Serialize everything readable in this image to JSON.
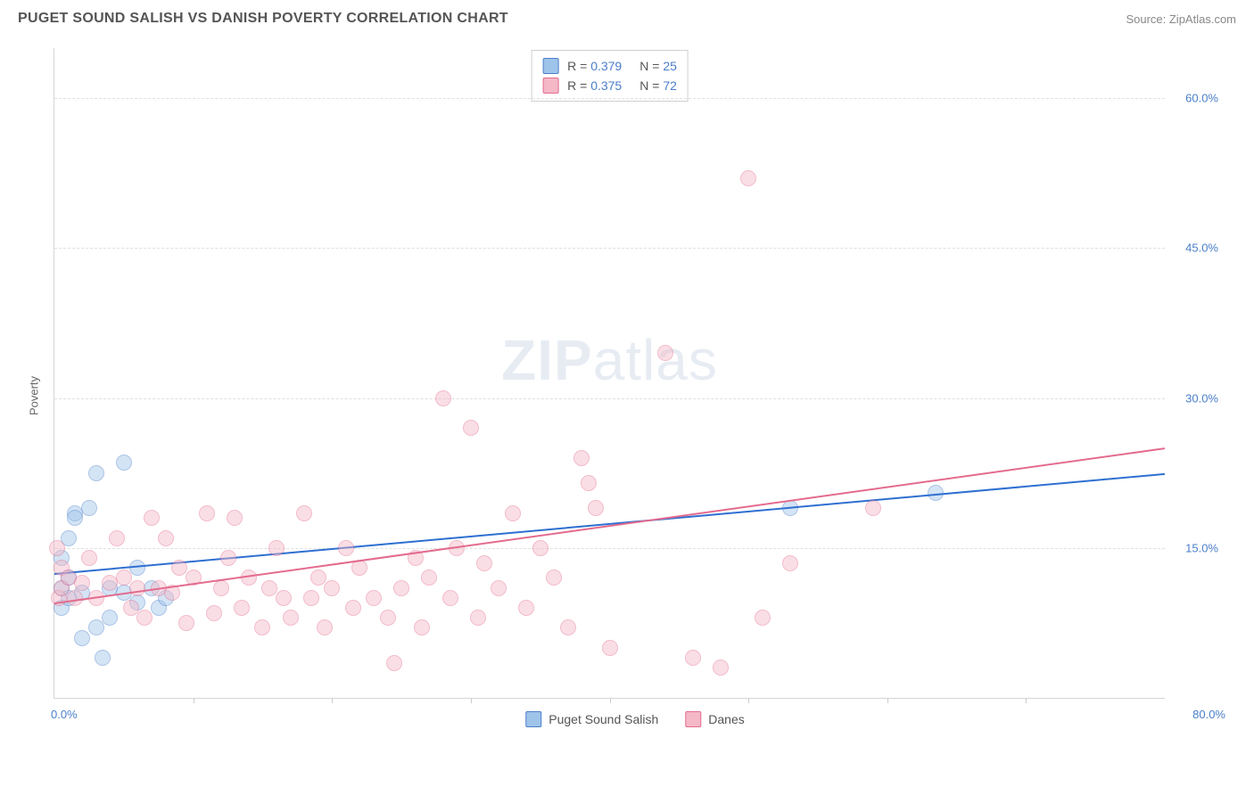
{
  "title": "PUGET SOUND SALISH VS DANISH POVERTY CORRELATION CHART",
  "source": "Source: ZipAtlas.com",
  "watermark_bold": "ZIP",
  "watermark_rest": "atlas",
  "ylabel": "Poverty",
  "chart": {
    "type": "scatter",
    "background_color": "#ffffff",
    "grid_color": "#e0e0e0",
    "axis_color": "#d5d5d5",
    "xlim": [
      0,
      80
    ],
    "ylim": [
      0,
      65
    ],
    "x_start_label": "0.0%",
    "x_end_label": "80.0%",
    "x_tick_marks": [
      10,
      20,
      30,
      40,
      50,
      60,
      70
    ],
    "y_ticks": [
      {
        "v": 15,
        "label": "15.0%"
      },
      {
        "v": 30,
        "label": "30.0%"
      },
      {
        "v": 45,
        "label": "45.0%"
      },
      {
        "v": 60,
        "label": "60.0%"
      }
    ],
    "point_radius": 9,
    "point_opacity": 0.45,
    "series": [
      {
        "name": "Puget Sound Salish",
        "color_fill": "#9fc4ea",
        "color_stroke": "#4a7ec9",
        "trend_color": "#2e6fd1",
        "r_label": "R = ",
        "r_value": "0.379",
        "n_label": "N = ",
        "n_value": "25",
        "trend": {
          "x1": 0,
          "y1": 12.5,
          "x2": 80,
          "y2": 22.5
        },
        "points": [
          [
            0.5,
            14
          ],
          [
            0.5,
            11
          ],
          [
            0.5,
            9
          ],
          [
            1,
            16
          ],
          [
            1,
            12
          ],
          [
            1,
            10
          ],
          [
            1.5,
            18.5
          ],
          [
            1.5,
            18
          ],
          [
            2,
            10.5
          ],
          [
            2,
            6
          ],
          [
            2.5,
            19
          ],
          [
            3,
            22.5
          ],
          [
            3,
            7
          ],
          [
            3.5,
            4
          ],
          [
            4,
            8
          ],
          [
            4,
            11
          ],
          [
            5,
            23.5
          ],
          [
            5,
            10.5
          ],
          [
            6,
            13
          ],
          [
            6,
            9.5
          ],
          [
            7,
            11
          ],
          [
            7.5,
            9
          ],
          [
            8,
            10
          ],
          [
            53,
            19
          ],
          [
            63.5,
            20.5
          ]
        ]
      },
      {
        "name": "Danes",
        "color_fill": "#f4b8c6",
        "color_stroke": "#e36b8e",
        "trend_color": "#e36b8e",
        "r_label": "R = ",
        "r_value": "0.375",
        "n_label": "N = ",
        "n_value": "72",
        "trend": {
          "x1": 0,
          "y1": 9.5,
          "x2": 80,
          "y2": 25
        },
        "points": [
          [
            0.2,
            15
          ],
          [
            0.3,
            10
          ],
          [
            0.5,
            11
          ],
          [
            0.5,
            13
          ],
          [
            1,
            12
          ],
          [
            1.5,
            10
          ],
          [
            2,
            11.5
          ],
          [
            2.5,
            14
          ],
          [
            3,
            10
          ],
          [
            4,
            11.5
          ],
          [
            4.5,
            16
          ],
          [
            5,
            12
          ],
          [
            5.5,
            9
          ],
          [
            6,
            11
          ],
          [
            6.5,
            8
          ],
          [
            7,
            18
          ],
          [
            7.5,
            11
          ],
          [
            8,
            16
          ],
          [
            8.5,
            10.5
          ],
          [
            9,
            13
          ],
          [
            9.5,
            7.5
          ],
          [
            10,
            12
          ],
          [
            11,
            18.5
          ],
          [
            11.5,
            8.5
          ],
          [
            12,
            11
          ],
          [
            12.5,
            14
          ],
          [
            13,
            18
          ],
          [
            13.5,
            9
          ],
          [
            14,
            12
          ],
          [
            15,
            7
          ],
          [
            15.5,
            11
          ],
          [
            16,
            15
          ],
          [
            16.5,
            10
          ],
          [
            17,
            8
          ],
          [
            18,
            18.5
          ],
          [
            18.5,
            10
          ],
          [
            19,
            12
          ],
          [
            19.5,
            7
          ],
          [
            20,
            11
          ],
          [
            21,
            15
          ],
          [
            21.5,
            9
          ],
          [
            22,
            13
          ],
          [
            23,
            10
          ],
          [
            24,
            8
          ],
          [
            24.5,
            3.5
          ],
          [
            25,
            11
          ],
          [
            26,
            14
          ],
          [
            26.5,
            7
          ],
          [
            27,
            12
          ],
          [
            28,
            30
          ],
          [
            28.5,
            10
          ],
          [
            29,
            15
          ],
          [
            30,
            27
          ],
          [
            30.5,
            8
          ],
          [
            31,
            13.5
          ],
          [
            32,
            11
          ],
          [
            33,
            18.5
          ],
          [
            34,
            9
          ],
          [
            35,
            15
          ],
          [
            36,
            12
          ],
          [
            37,
            7
          ],
          [
            38,
            24
          ],
          [
            38.5,
            21.5
          ],
          [
            39,
            19
          ],
          [
            40,
            5
          ],
          [
            44,
            34.5
          ],
          [
            46,
            4
          ],
          [
            48,
            3
          ],
          [
            50,
            52
          ],
          [
            51,
            8
          ],
          [
            59,
            19
          ],
          [
            53,
            13.5
          ]
        ]
      }
    ]
  }
}
